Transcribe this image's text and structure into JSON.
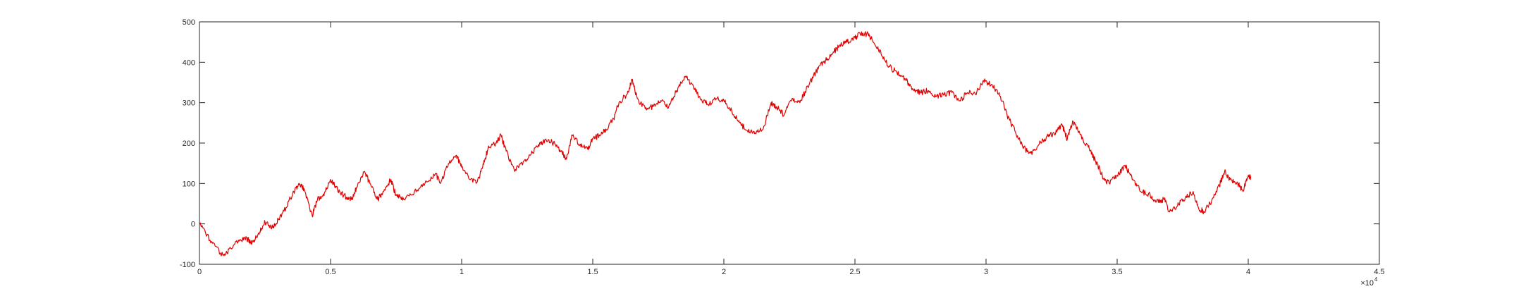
{
  "chart_data": {
    "type": "line",
    "title": "",
    "xlabel": "",
    "ylabel": "",
    "xlim": [
      0,
      45000
    ],
    "ylim": [
      -100,
      500
    ],
    "x_ticks": [
      0,
      5000,
      10000,
      15000,
      20000,
      25000,
      30000,
      35000,
      40000,
      45000
    ],
    "x_tick_labels": [
      "0",
      "0.5",
      "1",
      "1.5",
      "2",
      "2.5",
      "3",
      "3.5",
      "4",
      "4.5"
    ],
    "x_exponent_label": "×10",
    "x_exponent_power": "4",
    "y_ticks": [
      -100,
      0,
      100,
      200,
      300,
      400,
      500
    ],
    "y_tick_labels": [
      "-100",
      "0",
      "100",
      "200",
      "300",
      "400",
      "500"
    ],
    "grid": false,
    "box": true,
    "series": [
      {
        "color": "#e00000",
        "points": [
          [
            0,
            0
          ],
          [
            400,
            -40
          ],
          [
            800,
            -72
          ],
          [
            1000,
            -75
          ],
          [
            1200,
            -60
          ],
          [
            1500,
            -40
          ],
          [
            1800,
            -35
          ],
          [
            2000,
            -48
          ],
          [
            2300,
            -20
          ],
          [
            2500,
            5
          ],
          [
            2800,
            -10
          ],
          [
            3000,
            10
          ],
          [
            3300,
            40
          ],
          [
            3600,
            80
          ],
          [
            3800,
            100
          ],
          [
            4000,
            85
          ],
          [
            4300,
            20
          ],
          [
            4500,
            60
          ],
          [
            4800,
            80
          ],
          [
            5000,
            110
          ],
          [
            5200,
            90
          ],
          [
            5500,
            70
          ],
          [
            5800,
            60
          ],
          [
            6000,
            90
          ],
          [
            6300,
            130
          ],
          [
            6500,
            100
          ],
          [
            6800,
            60
          ],
          [
            7000,
            80
          ],
          [
            7300,
            110
          ],
          [
            7500,
            70
          ],
          [
            7800,
            60
          ],
          [
            8200,
            80
          ],
          [
            8600,
            100
          ],
          [
            9000,
            125
          ],
          [
            9200,
            100
          ],
          [
            9500,
            150
          ],
          [
            9800,
            170
          ],
          [
            10000,
            140
          ],
          [
            10300,
            110
          ],
          [
            10600,
            105
          ],
          [
            10800,
            140
          ],
          [
            11000,
            185
          ],
          [
            11300,
            200
          ],
          [
            11500,
            220
          ],
          [
            11700,
            180
          ],
          [
            12000,
            135
          ],
          [
            12300,
            150
          ],
          [
            12600,
            170
          ],
          [
            12900,
            190
          ],
          [
            13200,
            210
          ],
          [
            13500,
            200
          ],
          [
            13800,
            180
          ],
          [
            14000,
            160
          ],
          [
            14200,
            220
          ],
          [
            14500,
            195
          ],
          [
            14800,
            185
          ],
          [
            15000,
            210
          ],
          [
            15300,
            220
          ],
          [
            15500,
            235
          ],
          [
            15800,
            260
          ],
          [
            16000,
            300
          ],
          [
            16300,
            320
          ],
          [
            16500,
            355
          ],
          [
            16700,
            310
          ],
          [
            17000,
            285
          ],
          [
            17300,
            290
          ],
          [
            17600,
            305
          ],
          [
            17900,
            290
          ],
          [
            18200,
            330
          ],
          [
            18500,
            365
          ],
          [
            18800,
            345
          ],
          [
            19100,
            310
          ],
          [
            19400,
            295
          ],
          [
            19700,
            310
          ],
          [
            20000,
            305
          ],
          [
            20300,
            280
          ],
          [
            20600,
            250
          ],
          [
            20900,
            230
          ],
          [
            21200,
            225
          ],
          [
            21500,
            235
          ],
          [
            21800,
            300
          ],
          [
            22000,
            290
          ],
          [
            22300,
            270
          ],
          [
            22600,
            310
          ],
          [
            22900,
            300
          ],
          [
            23200,
            340
          ],
          [
            23500,
            375
          ],
          [
            23800,
            400
          ],
          [
            24100,
            420
          ],
          [
            24400,
            440
          ],
          [
            24700,
            450
          ],
          [
            25000,
            460
          ],
          [
            25200,
            470
          ],
          [
            25500,
            470
          ],
          [
            25700,
            450
          ],
          [
            26000,
            420
          ],
          [
            26300,
            390
          ],
          [
            26600,
            375
          ],
          [
            26900,
            360
          ],
          [
            27200,
            335
          ],
          [
            27500,
            325
          ],
          [
            27800,
            330
          ],
          [
            28100,
            315
          ],
          [
            28400,
            320
          ],
          [
            28700,
            325
          ],
          [
            29000,
            305
          ],
          [
            29300,
            325
          ],
          [
            29600,
            320
          ],
          [
            29900,
            355
          ],
          [
            30200,
            345
          ],
          [
            30500,
            325
          ],
          [
            30800,
            270
          ],
          [
            31100,
            230
          ],
          [
            31400,
            190
          ],
          [
            31700,
            175
          ],
          [
            32000,
            195
          ],
          [
            32300,
            215
          ],
          [
            32600,
            225
          ],
          [
            32900,
            245
          ],
          [
            33100,
            210
          ],
          [
            33300,
            255
          ],
          [
            33600,
            220
          ],
          [
            33900,
            190
          ],
          [
            34100,
            165
          ],
          [
            34300,
            140
          ],
          [
            34500,
            110
          ],
          [
            34700,
            100
          ],
          [
            35000,
            120
          ],
          [
            35300,
            145
          ],
          [
            35600,
            110
          ],
          [
            35900,
            80
          ],
          [
            36200,
            75
          ],
          [
            36500,
            55
          ],
          [
            36800,
            60
          ],
          [
            37000,
            30
          ],
          [
            37300,
            45
          ],
          [
            37600,
            65
          ],
          [
            37900,
            80
          ],
          [
            38100,
            40
          ],
          [
            38300,
            30
          ],
          [
            38600,
            55
          ],
          [
            38900,
            95
          ],
          [
            39100,
            130
          ],
          [
            39300,
            110
          ],
          [
            39600,
            100
          ],
          [
            39800,
            80
          ],
          [
            40000,
            120
          ],
          [
            40100,
            115
          ]
        ]
      }
    ]
  }
}
